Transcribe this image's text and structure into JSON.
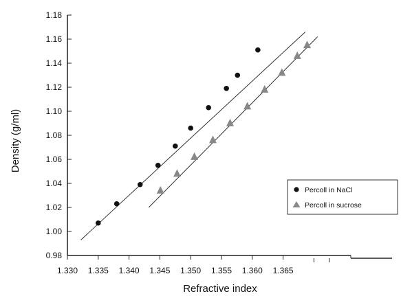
{
  "chart_data": {
    "type": "scatter",
    "title": "",
    "xlabel": "Refractive index",
    "ylabel": "Density (g/ml)",
    "xlim": [
      1.33,
      1.3733
    ],
    "ylim": [
      0.98,
      1.18
    ],
    "x_ticks": [
      "1.330",
      "1.335",
      "1.340",
      "1.345",
      "1.350",
      "1.355",
      "1.360",
      "1.365"
    ],
    "y_ticks": [
      "0.98",
      "1.00",
      "1.02",
      "1.04",
      "1.06",
      "1.08",
      "1.10",
      "1.12",
      "1.14",
      "1.16",
      "1.18"
    ],
    "grid": false,
    "legend_position": "right",
    "series": [
      {
        "name": "Percoll in NaCl",
        "marker": "circle",
        "color": "#111111",
        "points": [
          [
            1.335,
            1.007
          ],
          [
            1.338,
            1.023
          ],
          [
            1.3418,
            1.039
          ],
          [
            1.3447,
            1.055
          ],
          [
            1.3475,
            1.071
          ],
          [
            1.35,
            1.086
          ],
          [
            1.3529,
            1.103
          ],
          [
            1.3558,
            1.119
          ],
          [
            1.3576,
            1.13
          ],
          [
            1.3609,
            1.151
          ]
        ],
        "fit_line": [
          [
            1.3322,
            0.993
          ],
          [
            1.3686,
            1.166
          ]
        ]
      },
      {
        "name": "Percoll in sucrose",
        "marker": "triangle",
        "color": "#888888",
        "points": [
          [
            1.3451,
            1.034
          ],
          [
            1.3478,
            1.048
          ],
          [
            1.3506,
            1.062
          ],
          [
            1.3536,
            1.076
          ],
          [
            1.3564,
            1.09
          ],
          [
            1.3592,
            1.104
          ],
          [
            1.362,
            1.118
          ],
          [
            1.3648,
            1.132
          ],
          [
            1.3673,
            1.146
          ],
          [
            1.3689,
            1.155
          ]
        ],
        "fit_line": [
          [
            1.3432,
            1.02
          ],
          [
            1.3706,
            1.162
          ]
        ]
      }
    ]
  }
}
